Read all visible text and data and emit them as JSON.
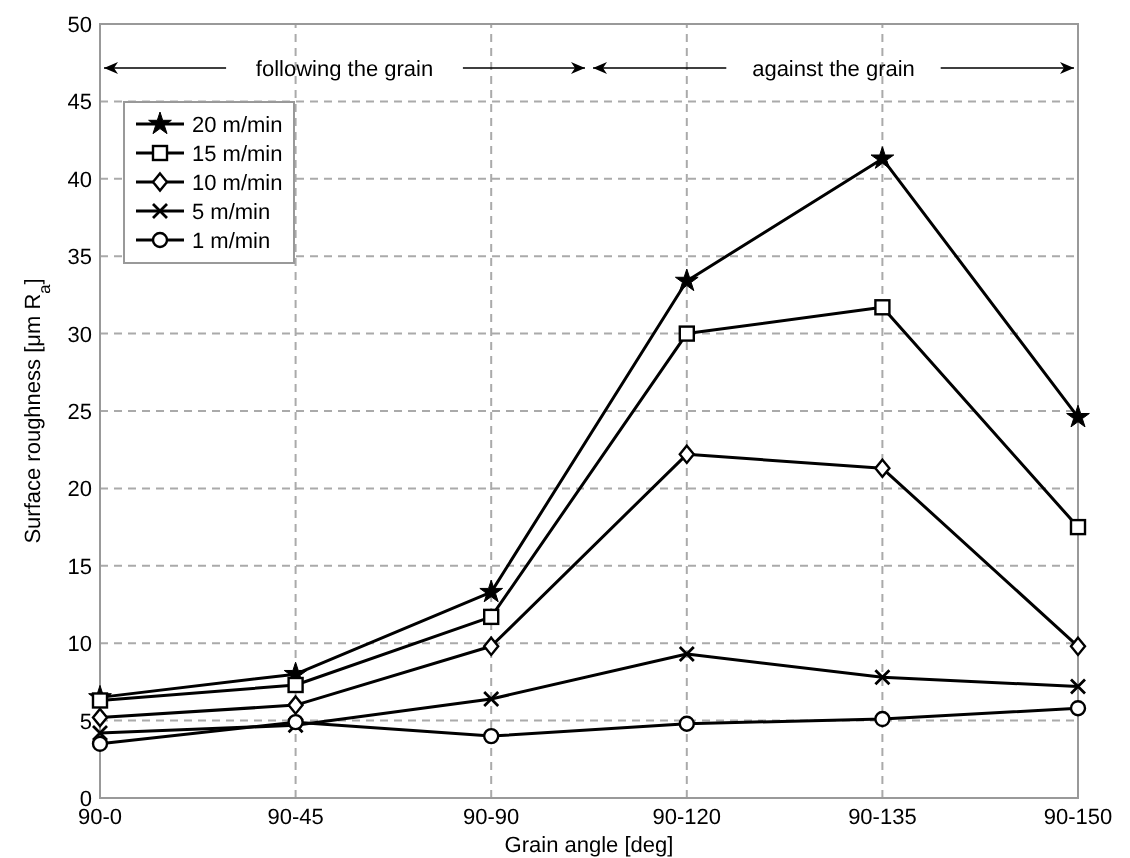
{
  "chart_data": {
    "type": "line",
    "xlabel": "Grain angle [deg]",
    "ylabel": "Surface roughness [μm R$_{a}$]",
    "categories": [
      "90-0",
      "90-45",
      "90-90",
      "90-120",
      "90-135",
      "90-150"
    ],
    "ylim": [
      0,
      50
    ],
    "yticks": [
      0,
      5,
      10,
      15,
      20,
      25,
      30,
      35,
      40,
      45,
      50
    ],
    "grid": true,
    "legend": "top left",
    "line_style": "solid",
    "annotations": [
      "following the grain",
      "against the grain"
    ],
    "series": [
      {
        "name": "20 m/min",
        "color": "#000000",
        "marker": "star",
        "values": [
          6.5,
          8.0,
          13.3,
          33.4,
          41.3,
          24.6
        ]
      },
      {
        "name": "15 m/min",
        "color": "#000000",
        "marker": "square",
        "values": [
          6.3,
          7.3,
          11.7,
          30.0,
          31.7,
          17.5
        ]
      },
      {
        "name": "10 m/min",
        "color": "#000000",
        "marker": "diamond",
        "values": [
          5.2,
          6.0,
          9.8,
          22.2,
          21.3,
          9.8
        ]
      },
      {
        "name": "5 m/min",
        "color": "#000000",
        "marker": "cross",
        "values": [
          4.2,
          4.7,
          6.4,
          9.3,
          7.8,
          7.2
        ]
      },
      {
        "name": "1 m/min",
        "color": "#000000",
        "marker": "circle",
        "values": [
          3.5,
          4.9,
          4.0,
          4.8,
          5.1,
          5.8
        ]
      }
    ]
  }
}
